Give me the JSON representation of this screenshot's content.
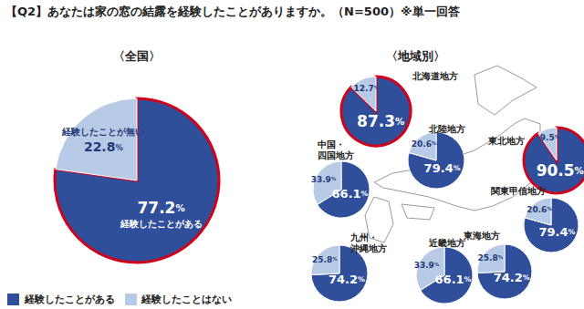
{
  "title": "【Q2】あなたは家の窓の結露を経験したことがありますか。（N=500）※単一回答",
  "chart_data": [
    {
      "type": "pie",
      "title": "〈全国〉",
      "categories": [
        "経験したことがある",
        "経験したことはない"
      ],
      "values": [
        77.2,
        22.8
      ],
      "value_labels": [
        "77.2%",
        "22.8%"
      ],
      "annotations": [
        "経験したことがある",
        "経験したことが無い"
      ],
      "colors": [
        "#2f4f9a",
        "#b7cae6"
      ],
      "data_labels": true,
      "legend": "bottom-left"
    },
    {
      "type": "pie",
      "title": "〈地域別〉",
      "categories": [
        "経験したことがある",
        "経験したことはない"
      ],
      "colors": [
        "#2f4f9a",
        "#b7cae6"
      ],
      "data_labels": true,
      "series": [
        {
          "name": "北海道地方",
          "values": [
            87.3,
            12.7
          ],
          "value_labels": [
            "87.3%",
            "12.7%"
          ]
        },
        {
          "name": "北陸地方",
          "values": [
            79.4,
            20.6
          ],
          "value_labels": [
            "79.4%",
            "20.6%"
          ]
        },
        {
          "name": "東北地方",
          "values": [
            90.5,
            9.5
          ],
          "value_labels": [
            "90.5%",
            "9.5%"
          ]
        },
        {
          "name": "関東甲信地方",
          "values": [
            79.4,
            20.6
          ],
          "value_labels": [
            "79.4%",
            "20.6%"
          ]
        },
        {
          "name": "東海地方",
          "values": [
            74.2,
            25.8
          ],
          "value_labels": [
            "74.2%",
            "25.8%"
          ]
        },
        {
          "name": "近畿地方",
          "values": [
            66.1,
            33.9
          ],
          "value_labels": [
            "66.1%",
            "33.9%"
          ]
        },
        {
          "name": "中国・四国地方",
          "values": [
            66.1,
            33.9
          ],
          "value_labels": [
            "66.1%",
            "33.9%"
          ]
        },
        {
          "name": "九州・沖縄地方",
          "values": [
            74.2,
            25.8
          ],
          "value_labels": [
            "74.2%",
            "25.8%"
          ]
        }
      ]
    }
  ]
}
